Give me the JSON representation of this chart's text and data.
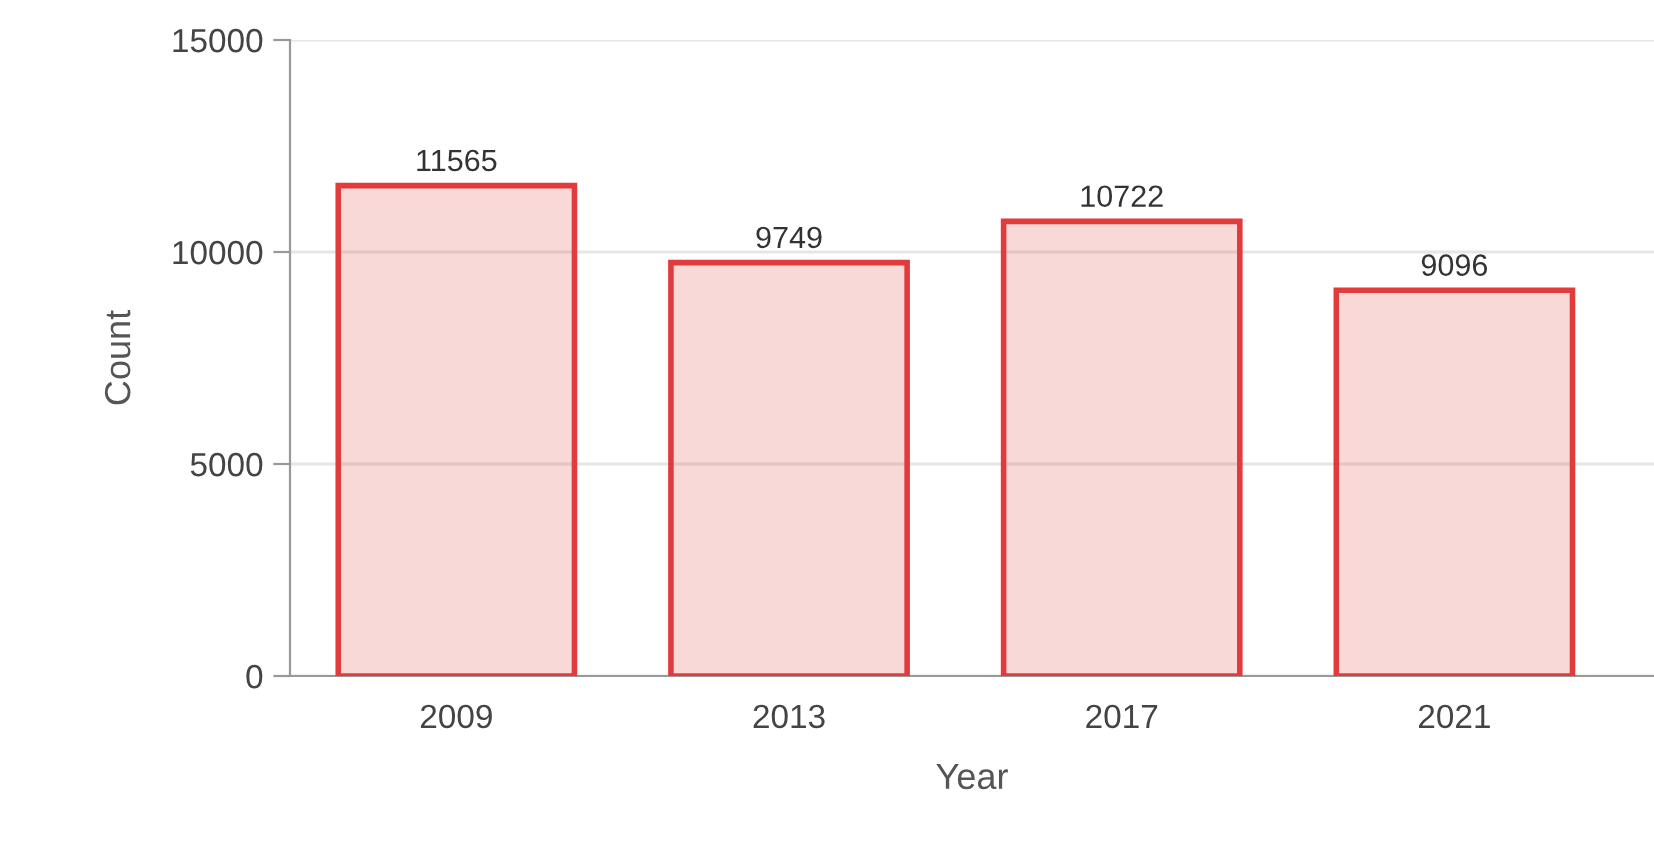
{
  "chart_data": {
    "type": "bar",
    "xlabel": "Year",
    "ylabel": "Count",
    "categories": [
      "2009",
      "2013",
      "2017",
      "2021"
    ],
    "values": [
      11565,
      9749,
      10722,
      9096
    ],
    "color": "#e23b3b",
    "ylim": [
      0,
      15000
    ],
    "yticks": [
      0,
      5000,
      10000,
      15000
    ],
    "grid": "y",
    "data_labels": true
  }
}
